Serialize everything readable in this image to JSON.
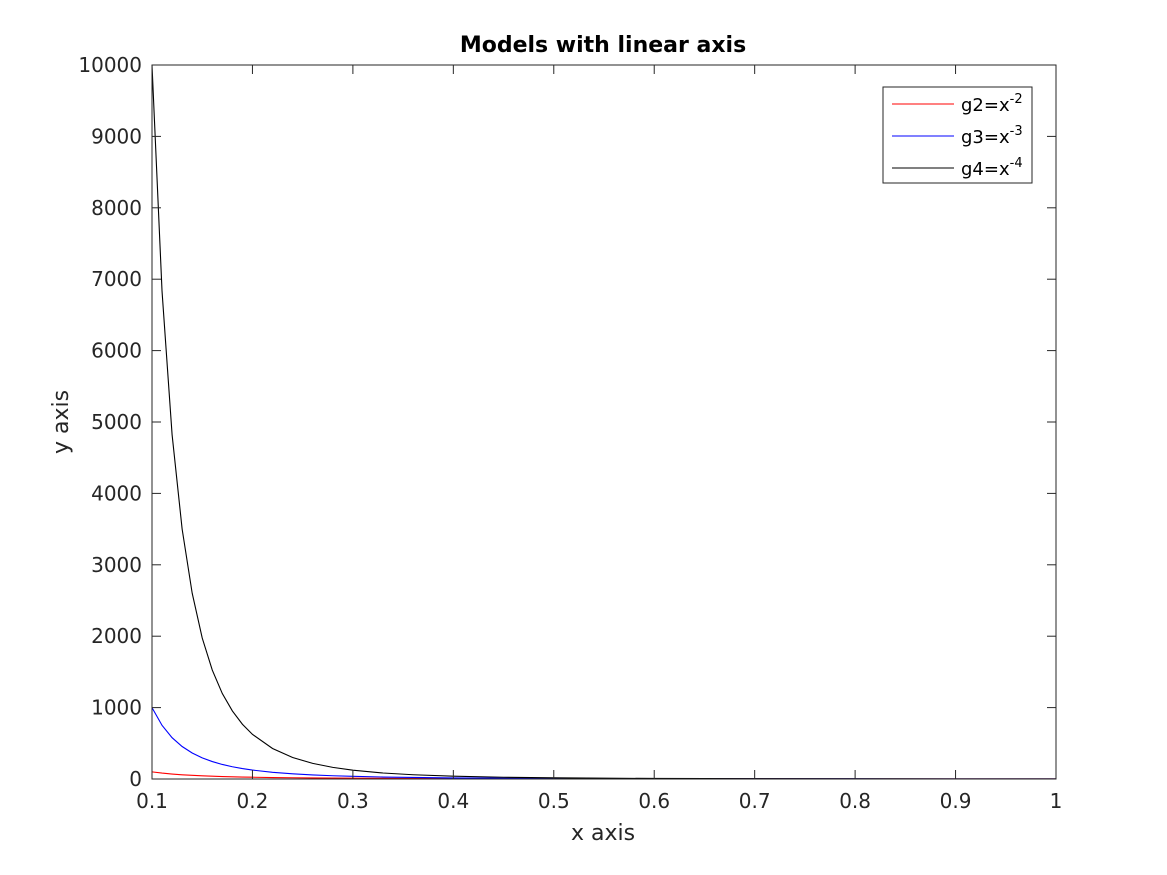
{
  "chart_data": {
    "type": "line",
    "title": "Models with linear axis",
    "xlabel": "x axis",
    "ylabel": "y axis",
    "xlim": [
      0.1,
      1
    ],
    "ylim": [
      0,
      10000
    ],
    "xticks": [
      0.1,
      0.2,
      0.3,
      0.4,
      0.5,
      0.6,
      0.7,
      0.8,
      0.9,
      1
    ],
    "xtick_labels": [
      "0.1",
      "0.2",
      "0.3",
      "0.4",
      "0.5",
      "0.6",
      "0.7",
      "0.8",
      "0.9",
      "1"
    ],
    "yticks": [
      0,
      1000,
      2000,
      3000,
      4000,
      5000,
      6000,
      7000,
      8000,
      9000,
      10000
    ],
    "ytick_labels": [
      "0",
      "1000",
      "2000",
      "3000",
      "4000",
      "5000",
      "6000",
      "7000",
      "8000",
      "9000",
      "10000"
    ],
    "grid": false,
    "legend_position": "top-right",
    "x": [
      0.1,
      0.11,
      0.12,
      0.13,
      0.14,
      0.15,
      0.16,
      0.17,
      0.18,
      0.19,
      0.2,
      0.22,
      0.24,
      0.26,
      0.28,
      0.3,
      0.33,
      0.36,
      0.4,
      0.45,
      0.5,
      0.55,
      0.6,
      0.7,
      0.8,
      0.9,
      1.0
    ],
    "series": [
      {
        "legend_base": "g2=x",
        "legend_exp": "-2",
        "color": "#ff0000",
        "values": [
          100,
          82.6,
          69.4,
          59.2,
          51.0,
          44.4,
          39.1,
          34.6,
          30.9,
          27.7,
          25,
          20.7,
          17.4,
          14.8,
          12.8,
          11.1,
          9.18,
          7.72,
          6.25,
          4.94,
          4,
          3.31,
          2.78,
          2.04,
          1.56,
          1.23,
          1
        ]
      },
      {
        "legend_base": "g3=x",
        "legend_exp": "-3",
        "color": "#0000ff",
        "values": [
          1000,
          751.3,
          578.7,
          455.2,
          364.4,
          296.3,
          244.1,
          203.5,
          171.5,
          145.8,
          125,
          93.9,
          72.3,
          56.9,
          45.6,
          37.0,
          27.8,
          21.4,
          15.6,
          11.0,
          8,
          6.01,
          4.63,
          2.92,
          1.95,
          1.37,
          1
        ]
      },
      {
        "legend_base": "g4=x",
        "legend_exp": "-4",
        "color": "#000000",
        "values": [
          10000,
          6830,
          4823,
          3501,
          2603,
          1975,
          1526,
          1197,
          953,
          767,
          625,
          427,
          301,
          219,
          163,
          123,
          84.2,
          59.5,
          39.1,
          24.4,
          16,
          10.9,
          7.72,
          4.16,
          2.44,
          1.52,
          1
        ]
      }
    ]
  }
}
